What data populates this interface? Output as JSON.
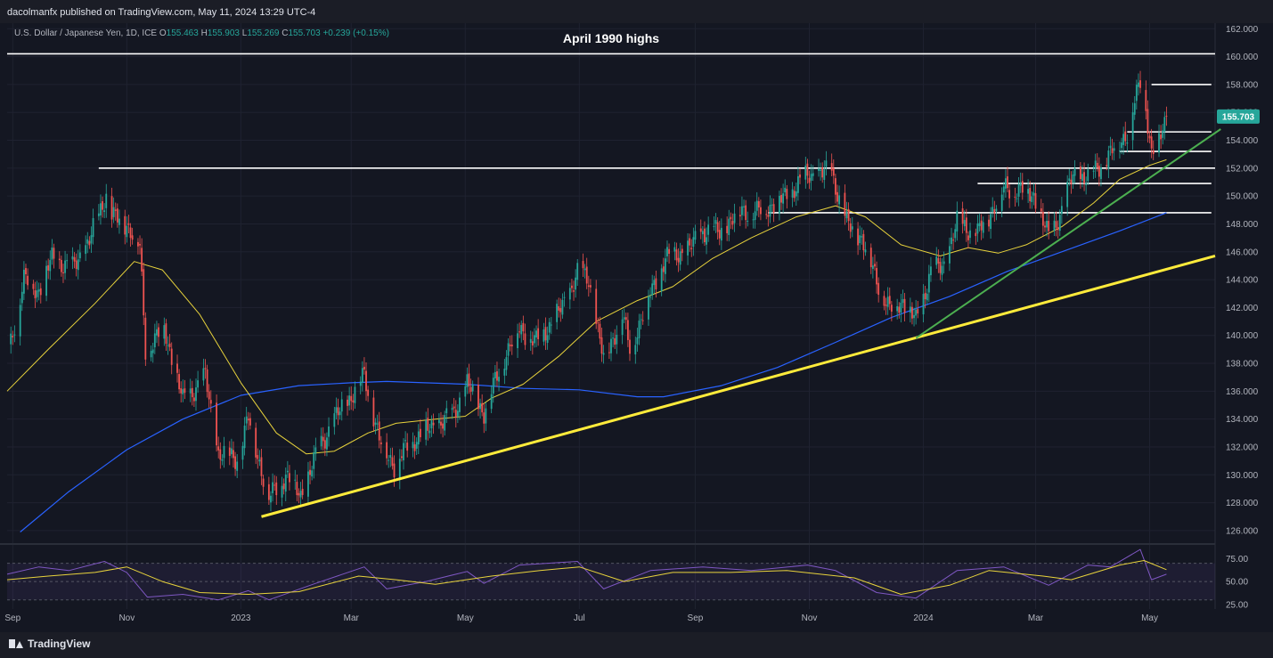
{
  "header": {
    "published": "dacolmanfx published on TradingView.com, May 11, 2024 13:29 UTC-4"
  },
  "legend": {
    "symbol": "U.S. Dollar / Japanese Yen, 1D, ICE",
    "open_label": "O",
    "open": "155.463",
    "high_label": "H",
    "high": "155.903",
    "low_label": "L",
    "low": "155.269",
    "close_label": "C",
    "close": "155.703",
    "change": "+0.239 (+0.15%)"
  },
  "footer": {
    "brand": "TradingView"
  },
  "colors": {
    "up": "#26a69a",
    "down": "#ef5350",
    "sma50": "#e8d33c",
    "sma200": "#2962ff",
    "trend_yellow": "#ffeb3b",
    "trend_green": "#4caf50",
    "rsi": "#7e57c2",
    "levels": "#ffffff"
  },
  "chart_data": {
    "type": "candlestick",
    "title": "April 1990 highs",
    "price_axis": {
      "ticks": [
        "162.000",
        "160.000",
        "158.000",
        "156.000",
        "154.000",
        "152.000",
        "150.000",
        "148.000",
        "146.000",
        "144.000",
        "142.000",
        "140.000",
        "138.000",
        "136.000",
        "134.000",
        "132.000",
        "130.000",
        "128.000",
        "126.000"
      ],
      "ylim": [
        125.1,
        162.4
      ],
      "last_price": "155.703"
    },
    "time_axis": {
      "labels": [
        {
          "label": "Sep",
          "date": "2022-09-01"
        },
        {
          "label": "Nov",
          "date": "2022-11-01"
        },
        {
          "label": "2023",
          "date": "2023-01-01"
        },
        {
          "label": "Mar",
          "date": "2023-03-01"
        },
        {
          "label": "May",
          "date": "2023-05-01"
        },
        {
          "label": "Jul",
          "date": "2023-07-01"
        },
        {
          "label": "Sep",
          "date": "2023-09-01"
        },
        {
          "label": "Nov",
          "date": "2023-11-01"
        },
        {
          "label": "2024",
          "date": "2024-01-01"
        },
        {
          "label": "Mar",
          "date": "2024-03-01"
        },
        {
          "label": "May",
          "date": "2024-05-01"
        }
      ],
      "range": [
        "2022-08-29",
        "2024-06-05"
      ]
    },
    "price_path": [
      [
        "2022-08-30",
        139.0
      ],
      [
        "2022-09-07",
        144.0
      ],
      [
        "2022-09-15",
        143.2
      ],
      [
        "2022-09-22",
        145.5
      ],
      [
        "2022-10-03",
        144.8
      ],
      [
        "2022-10-12",
        146.8
      ],
      [
        "2022-10-21",
        150.2
      ],
      [
        "2022-10-24",
        148.5
      ],
      [
        "2022-11-01",
        148.0
      ],
      [
        "2022-11-08",
        146.3
      ],
      [
        "2022-11-11",
        139.0
      ],
      [
        "2022-11-21",
        140.5
      ],
      [
        "2022-12-01",
        135.3
      ],
      [
        "2022-12-13",
        137.0
      ],
      [
        "2022-12-20",
        131.5
      ],
      [
        "2022-12-30",
        131.2
      ],
      [
        "2023-01-05",
        134.0
      ],
      [
        "2023-01-16",
        128.3
      ],
      [
        "2023-01-25",
        130.0
      ],
      [
        "2023-02-02",
        128.5
      ],
      [
        "2023-02-13",
        132.3
      ],
      [
        "2023-02-24",
        134.8
      ],
      [
        "2023-03-03",
        136.0
      ],
      [
        "2023-03-08",
        137.2
      ],
      [
        "2023-03-16",
        132.5
      ],
      [
        "2023-03-24",
        130.7
      ],
      [
        "2023-04-03",
        132.5
      ],
      [
        "2023-04-14",
        133.5
      ],
      [
        "2023-04-24",
        134.2
      ],
      [
        "2023-05-02",
        136.5
      ],
      [
        "2023-05-11",
        134.5
      ],
      [
        "2023-05-22",
        138.5
      ],
      [
        "2023-05-30",
        140.5
      ],
      [
        "2023-06-08",
        139.5
      ],
      [
        "2023-06-22",
        142.0
      ],
      [
        "2023-06-30",
        144.5
      ],
      [
        "2023-07-06",
        144.0
      ],
      [
        "2023-07-14",
        138.2
      ],
      [
        "2023-07-24",
        141.5
      ],
      [
        "2023-07-28",
        139.0
      ],
      [
        "2023-08-08",
        143.0
      ],
      [
        "2023-08-16",
        145.5
      ],
      [
        "2023-08-29",
        146.2
      ],
      [
        "2023-09-05",
        147.5
      ],
      [
        "2023-09-14",
        147.4
      ],
      [
        "2023-09-26",
        149.0
      ],
      [
        "2023-10-04",
        148.8
      ],
      [
        "2023-10-18",
        149.8
      ],
      [
        "2023-10-31",
        151.5
      ],
      [
        "2023-11-13",
        151.7
      ],
      [
        "2023-11-21",
        148.0
      ],
      [
        "2023-11-29",
        147.0
      ],
      [
        "2023-12-07",
        144.0
      ],
      [
        "2023-12-14",
        141.8
      ],
      [
        "2023-12-21",
        142.5
      ],
      [
        "2023-12-28",
        141.0
      ],
      [
        "2024-01-05",
        144.6
      ],
      [
        "2024-01-12",
        145.0
      ],
      [
        "2024-01-19",
        148.1
      ],
      [
        "2024-01-30",
        147.3
      ],
      [
        "2024-02-05",
        148.6
      ],
      [
        "2024-02-13",
        150.5
      ],
      [
        "2024-02-22",
        150.5
      ],
      [
        "2024-02-29",
        150.0
      ],
      [
        "2024-03-08",
        147.0
      ],
      [
        "2024-03-15",
        149.0
      ],
      [
        "2024-03-21",
        151.5
      ],
      [
        "2024-03-29",
        151.3
      ],
      [
        "2024-04-10",
        153.0
      ],
      [
        "2024-04-19",
        154.6
      ],
      [
        "2024-04-26",
        158.2
      ],
      [
        "2024-04-29",
        156.5
      ],
      [
        "2024-05-02",
        153.0
      ],
      [
        "2024-05-06",
        153.9
      ],
      [
        "2024-05-10",
        155.7
      ]
    ],
    "sma50": [
      [
        "2022-08-29",
        136.0
      ],
      [
        "2022-09-20",
        139.0
      ],
      [
        "2022-10-15",
        142.3
      ],
      [
        "2022-11-05",
        145.3
      ],
      [
        "2022-11-20",
        144.7
      ],
      [
        "2022-12-10",
        141.5
      ],
      [
        "2023-01-01",
        136.6
      ],
      [
        "2023-01-20",
        133.0
      ],
      [
        "2023-02-05",
        131.5
      ],
      [
        "2023-02-20",
        131.7
      ],
      [
        "2023-03-10",
        133.0
      ],
      [
        "2023-03-25",
        133.7
      ],
      [
        "2023-04-15",
        134.0
      ],
      [
        "2023-05-01",
        134.2
      ],
      [
        "2023-05-15",
        135.5
      ],
      [
        "2023-06-01",
        136.5
      ],
      [
        "2023-06-20",
        138.5
      ],
      [
        "2023-07-10",
        141.0
      ],
      [
        "2023-08-01",
        142.5
      ],
      [
        "2023-08-20",
        143.5
      ],
      [
        "2023-09-10",
        145.5
      ],
      [
        "2023-10-01",
        147.0
      ],
      [
        "2023-10-25",
        148.5
      ],
      [
        "2023-11-15",
        149.3
      ],
      [
        "2023-12-01",
        148.5
      ],
      [
        "2023-12-20",
        146.5
      ],
      [
        "2024-01-10",
        145.7
      ],
      [
        "2024-01-25",
        146.3
      ],
      [
        "2024-02-10",
        145.9
      ],
      [
        "2024-02-25",
        146.5
      ],
      [
        "2024-03-15",
        147.8
      ],
      [
        "2024-04-01",
        149.5
      ],
      [
        "2024-04-15",
        151.2
      ],
      [
        "2024-05-01",
        152.2
      ],
      [
        "2024-05-10",
        152.6
      ]
    ],
    "sma200": [
      [
        "2022-09-05",
        125.9
      ],
      [
        "2022-10-01",
        128.8
      ],
      [
        "2022-11-01",
        131.8
      ],
      [
        "2022-12-01",
        134.0
      ],
      [
        "2023-01-01",
        135.7
      ],
      [
        "2023-02-01",
        136.4
      ],
      [
        "2023-03-01",
        136.6
      ],
      [
        "2023-03-20",
        136.7
      ],
      [
        "2023-05-01",
        136.5
      ],
      [
        "2023-06-01",
        136.2
      ],
      [
        "2023-07-01",
        136.1
      ],
      [
        "2023-08-01",
        135.6
      ],
      [
        "2023-08-15",
        135.6
      ],
      [
        "2023-09-15",
        136.4
      ],
      [
        "2023-10-15",
        137.7
      ],
      [
        "2023-11-15",
        139.5
      ],
      [
        "2023-12-15",
        141.3
      ],
      [
        "2024-01-15",
        142.8
      ],
      [
        "2024-02-15",
        144.6
      ],
      [
        "2024-03-15",
        146.0
      ],
      [
        "2024-04-15",
        147.5
      ],
      [
        "2024-05-10",
        148.8
      ]
    ],
    "levels": [
      {
        "price": 160.2,
        "from": "2022-08-29",
        "to": "2024-06-05"
      },
      {
        "price": 158.0,
        "from": "2024-05-02",
        "to": "2024-06-03"
      },
      {
        "price": 152.0,
        "from": "2022-10-17",
        "to": "2024-06-05"
      },
      {
        "price": 154.6,
        "from": "2024-04-19",
        "to": "2024-06-03"
      },
      {
        "price": 153.2,
        "from": "2024-04-15",
        "to": "2024-06-03"
      },
      {
        "price": 150.9,
        "from": "2024-01-30",
        "to": "2024-06-03"
      },
      {
        "price": 148.8,
        "from": "2023-10-10",
        "to": "2024-06-03"
      }
    ],
    "trendlines": [
      {
        "color": "yellow",
        "from": [
          "2023-01-12",
          127.0
        ],
        "to": [
          "2024-06-05",
          145.7
        ]
      },
      {
        "color": "green",
        "from": [
          "2023-12-28",
          139.8
        ],
        "to": [
          "2024-06-08",
          154.8
        ]
      }
    ],
    "rsi": {
      "ticks": [
        "75.00",
        "50.00",
        "25.00"
      ],
      "ylim": [
        20,
        90
      ],
      "band": [
        30,
        70
      ],
      "series": [
        [
          "2022-08-29",
          58
        ],
        [
          "2022-09-15",
          66
        ],
        [
          "2022-10-01",
          62
        ],
        [
          "2022-10-20",
          72
        ],
        [
          "2022-11-01",
          60
        ],
        [
          "2022-11-12",
          33
        ],
        [
          "2022-12-01",
          36
        ],
        [
          "2022-12-20",
          30
        ],
        [
          "2023-01-05",
          40
        ],
        [
          "2023-01-16",
          30
        ],
        [
          "2023-02-10",
          48
        ],
        [
          "2023-03-08",
          66
        ],
        [
          "2023-03-20",
          42
        ],
        [
          "2023-04-10",
          50
        ],
        [
          "2023-05-02",
          61
        ],
        [
          "2023-05-11",
          48
        ],
        [
          "2023-05-30",
          68
        ],
        [
          "2023-06-30",
          72
        ],
        [
          "2023-07-14",
          42
        ],
        [
          "2023-08-08",
          62
        ],
        [
          "2023-09-05",
          66
        ],
        [
          "2023-10-01",
          62
        ],
        [
          "2023-10-31",
          68
        ],
        [
          "2023-11-15",
          62
        ],
        [
          "2023-12-07",
          38
        ],
        [
          "2023-12-28",
          32
        ],
        [
          "2024-01-19",
          62
        ],
        [
          "2024-02-13",
          66
        ],
        [
          "2024-03-08",
          46
        ],
        [
          "2024-03-29",
          68
        ],
        [
          "2024-04-10",
          66
        ],
        [
          "2024-04-26",
          85
        ],
        [
          "2024-05-02",
          52
        ],
        [
          "2024-05-10",
          58
        ]
      ],
      "ma": [
        [
          "2022-08-29",
          52
        ],
        [
          "2022-09-20",
          56
        ],
        [
          "2022-10-15",
          60
        ],
        [
          "2022-11-01",
          66
        ],
        [
          "2022-11-20",
          50
        ],
        [
          "2022-12-10",
          38
        ],
        [
          "2023-01-05",
          36
        ],
        [
          "2023-02-01",
          39
        ],
        [
          "2023-03-05",
          56
        ],
        [
          "2023-03-25",
          52
        ],
        [
          "2023-04-15",
          47
        ],
        [
          "2023-05-15",
          56
        ],
        [
          "2023-06-10",
          62
        ],
        [
          "2023-07-01",
          66
        ],
        [
          "2023-07-25",
          50
        ],
        [
          "2023-08-20",
          60
        ],
        [
          "2023-09-20",
          60
        ],
        [
          "2023-10-20",
          62
        ],
        [
          "2023-11-25",
          54
        ],
        [
          "2023-12-20",
          36
        ],
        [
          "2024-01-15",
          46
        ],
        [
          "2024-02-05",
          62
        ],
        [
          "2024-03-05",
          56
        ],
        [
          "2024-03-20",
          52
        ],
        [
          "2024-04-15",
          68
        ],
        [
          "2024-04-28",
          73
        ],
        [
          "2024-05-10",
          63
        ]
      ]
    }
  }
}
